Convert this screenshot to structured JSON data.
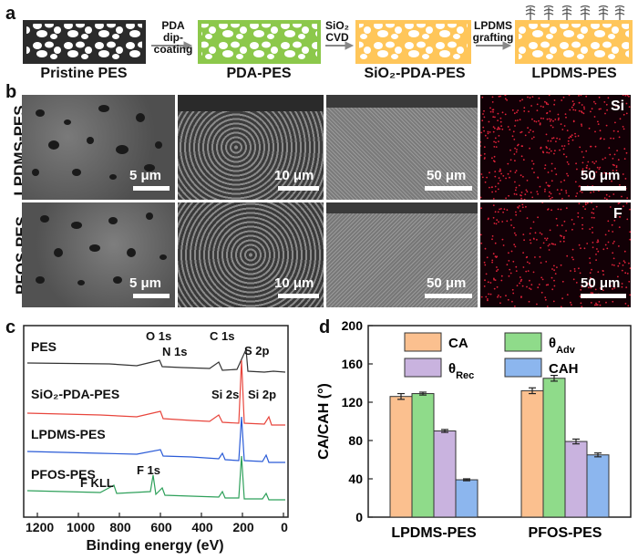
{
  "panel_a": {
    "letter": "a",
    "stages": [
      "Pristine PES",
      "PDA-PES",
      "SiO₂-PDA-PES",
      "LPDMS-PES"
    ],
    "arrows": [
      {
        "line1": "PDA",
        "line2": "dip-coating"
      },
      {
        "line1": "SiO₂",
        "line2": "CVD"
      },
      {
        "line1": "LPDMS",
        "line2": "grafting"
      }
    ],
    "colors": {
      "pristine": "#2b2b2b",
      "pda": "#8cc84b",
      "sio2": "#ffc65a",
      "lpdms": "#ffc65a"
    }
  },
  "panel_b": {
    "letter": "b",
    "rows": [
      "LPDMS-PES",
      "PFOS-PES"
    ],
    "scale_labels": [
      [
        "5 μm",
        "10 μm",
        "50 μm",
        "50 μm"
      ],
      [
        "5 μm",
        "10 μm",
        "50 μm",
        "50 μm"
      ]
    ],
    "element_labels": [
      "Si",
      "F"
    ]
  },
  "panel_c": {
    "letter": "c",
    "xlabel": "Binding energy (eV)",
    "xticks": [
      "1200",
      "1000",
      "800",
      "600",
      "400",
      "200",
      "0"
    ],
    "spectra": [
      {
        "name": "PES",
        "color": "#333333"
      },
      {
        "name": "SiO₂-PDA-PES",
        "color": "#e8453c"
      },
      {
        "name": "LPDMS-PES",
        "color": "#2a5bd7"
      },
      {
        "name": "PFOS-PES",
        "color": "#2ea05a"
      }
    ],
    "peaks": [
      "O 1s",
      "C 1s",
      "N 1s",
      "S 2p",
      "Si 2s",
      "Si 2p",
      "F 1s",
      "F KLL"
    ]
  },
  "chart_data": {
    "type": "bar",
    "categories": [
      "LPDMS-PES",
      "PFOS-PES"
    ],
    "series": [
      {
        "name": "CA",
        "values": [
          126,
          132
        ],
        "errors": [
          3,
          3
        ],
        "color": "#fbc08f"
      },
      {
        "name": "θAdv",
        "values": [
          129,
          145
        ],
        "errors": [
          1.5,
          3
        ],
        "color": "#8fdb8a"
      },
      {
        "name": "θRec",
        "values": [
          90,
          79
        ],
        "errors": [
          1.5,
          2.5
        ],
        "color": "#c9b3df"
      },
      {
        "name": "CAH",
        "values": [
          39,
          65
        ],
        "errors": [
          1,
          2
        ],
        "color": "#8cb6ee"
      }
    ],
    "ylabel": "CA/CAH (°)",
    "ylim": [
      0,
      200
    ],
    "yticks": [
      0,
      40,
      80,
      120,
      160,
      200
    ],
    "legend_placement": "top",
    "letter": "d"
  }
}
